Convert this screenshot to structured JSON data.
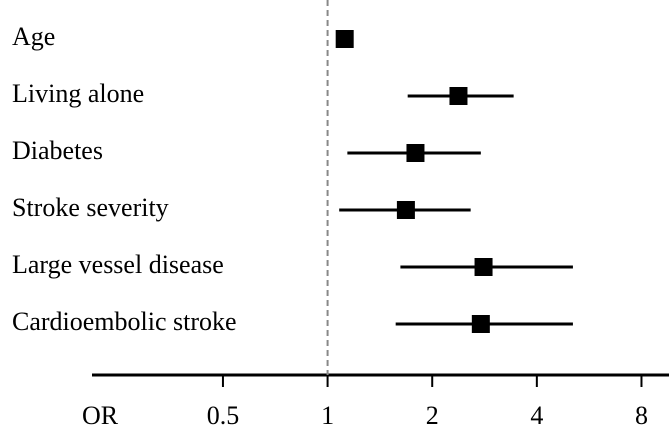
{
  "chart_data": {
    "type": "forest",
    "xlabel": "OR",
    "categories": [
      "Age",
      "Living alone",
      "Diabetes",
      "Stroke severity",
      "Large vessel disease",
      "Cardioembolic stroke"
    ],
    "values": [
      1.12,
      2.38,
      1.79,
      1.68,
      2.81,
      2.76
    ],
    "lower": [
      null,
      1.7,
      1.14,
      1.08,
      1.62,
      1.57
    ],
    "upper": [
      null,
      3.43,
      2.76,
      2.58,
      5.08,
      5.08
    ],
    "color": "#000000",
    "xscale": "log",
    "xlim": [
      0.21,
      9.6
    ],
    "xticks": [
      0.5,
      1,
      2,
      4,
      8
    ],
    "reference_line": 1
  }
}
